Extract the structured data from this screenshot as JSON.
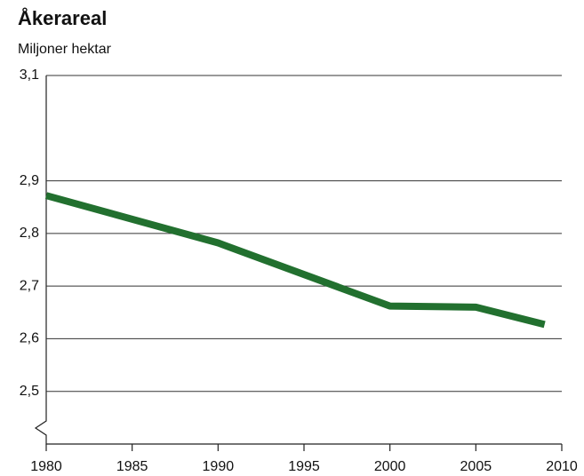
{
  "chart_data": {
    "type": "line",
    "title": "Åkerareal",
    "subtitle": "Miljoner hektar",
    "x": [
      1980,
      1990,
      2000,
      2005,
      2009
    ],
    "series": [
      {
        "name": "Åkerareal",
        "color": "#22702f",
        "values": [
          2.872,
          2.782,
          2.662,
          2.66,
          2.627
        ]
      }
    ],
    "xlim": [
      1980,
      2010
    ],
    "xticks": [
      1980,
      1985,
      1990,
      1995,
      2000,
      2005,
      2010
    ],
    "ylim": [
      2.4,
      3.1
    ],
    "yticks": [
      {
        "value": 2.5,
        "label": "2,5"
      },
      {
        "value": 2.6,
        "label": "2,6"
      },
      {
        "value": 2.7,
        "label": "2,7"
      },
      {
        "value": 2.8,
        "label": "2,8"
      },
      {
        "value": 2.9,
        "label": "2,9"
      },
      {
        "value": 3.1,
        "label": "3,1"
      }
    ],
    "grid": true
  }
}
